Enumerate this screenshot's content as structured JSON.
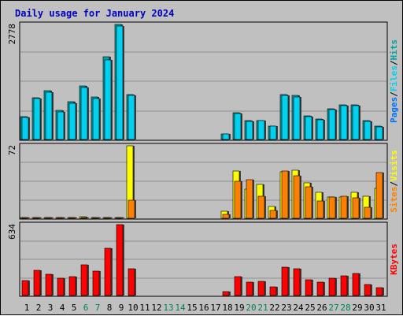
{
  "chart_data": [
    {
      "type": "bar",
      "title": "Daily usage for January 2024",
      "ymax_label": "2778",
      "ylim": [
        0,
        2778
      ],
      "legend": [
        "Pages",
        "Files",
        "Hits"
      ],
      "series": [
        {
          "name": "Hits",
          "color": "#00a0a0",
          "values": [
            560,
            1010,
            1180,
            700,
            920,
            1290,
            1020,
            2000,
            2778,
            1090,
            0,
            0,
            0,
            0,
            0,
            0,
            0,
            140,
            640,
            460,
            460,
            330,
            1090,
            1060,
            570,
            490,
            740,
            830,
            830,
            450,
            320
          ]
        },
        {
          "name": "Files",
          "color": "#00d0f0",
          "values": [
            540,
            980,
            1150,
            660,
            880,
            1250,
            990,
            1930,
            2740,
            1060,
            0,
            0,
            0,
            0,
            0,
            0,
            0,
            130,
            620,
            440,
            450,
            320,
            1060,
            1030,
            560,
            480,
            720,
            810,
            820,
            430,
            310
          ]
        },
        {
          "name": "Pages",
          "color": "#0070ff",
          "values": [
            0,
            0,
            0,
            0,
            0,
            0,
            0,
            0,
            0,
            0,
            0,
            0,
            0,
            0,
            0,
            0,
            0,
            0,
            0,
            0,
            0,
            0,
            0,
            0,
            0,
            0,
            0,
            0,
            0,
            0,
            0
          ]
        }
      ]
    },
    {
      "type": "bar",
      "ymax_label": "72",
      "ylim": [
        0,
        72
      ],
      "legend": [
        "Sites",
        "Visits"
      ],
      "series": [
        {
          "name": "Visits",
          "color": "#ffff00",
          "values": [
            1,
            1,
            1,
            1,
            1,
            1.5,
            1,
            1,
            1,
            72,
            0,
            0,
            0,
            0,
            0,
            0,
            0,
            7,
            47,
            29,
            34,
            12,
            46,
            48,
            35,
            26,
            21,
            21,
            26,
            22,
            30
          ]
        },
        {
          "name": "Sites",
          "color": "#ff8000",
          "values": [
            1,
            1,
            1,
            1,
            1,
            1,
            1,
            1,
            1,
            18,
            0,
            0,
            0,
            0,
            0,
            0,
            0,
            4,
            37,
            38,
            22,
            8,
            47,
            42,
            31,
            17,
            21,
            22,
            20,
            11,
            45
          ]
        }
      ]
    },
    {
      "type": "bar",
      "ymax_label": "634",
      "ylim": [
        0,
        634
      ],
      "legend": [
        "KBytes"
      ],
      "series": [
        {
          "name": "KBytes",
          "color": "#ff0000",
          "values": [
            132,
            224,
            192,
            156,
            166,
            272,
            218,
            424,
            634,
            238,
            0,
            0,
            0,
            0,
            0,
            0,
            0,
            34,
            166,
            120,
            126,
            76,
            252,
            236,
            142,
            120,
            154,
            178,
            196,
            96,
            72
          ]
        }
      ]
    }
  ],
  "days": [
    "1",
    "2",
    "3",
    "4",
    "5",
    "6",
    "7",
    "8",
    "9",
    "10",
    "11",
    "12",
    "13",
    "14",
    "15",
    "16",
    "17",
    "18",
    "19",
    "20",
    "21",
    "22",
    "23",
    "24",
    "25",
    "26",
    "27",
    "28",
    "29",
    "30",
    "31"
  ],
  "weekend_days": [
    6,
    7,
    13,
    14,
    20,
    21,
    27,
    28
  ],
  "colors": {
    "day_normal": "#000000",
    "day_weekend": "#00805a",
    "legend_separator": "#000000",
    "title": "#0000c0"
  }
}
